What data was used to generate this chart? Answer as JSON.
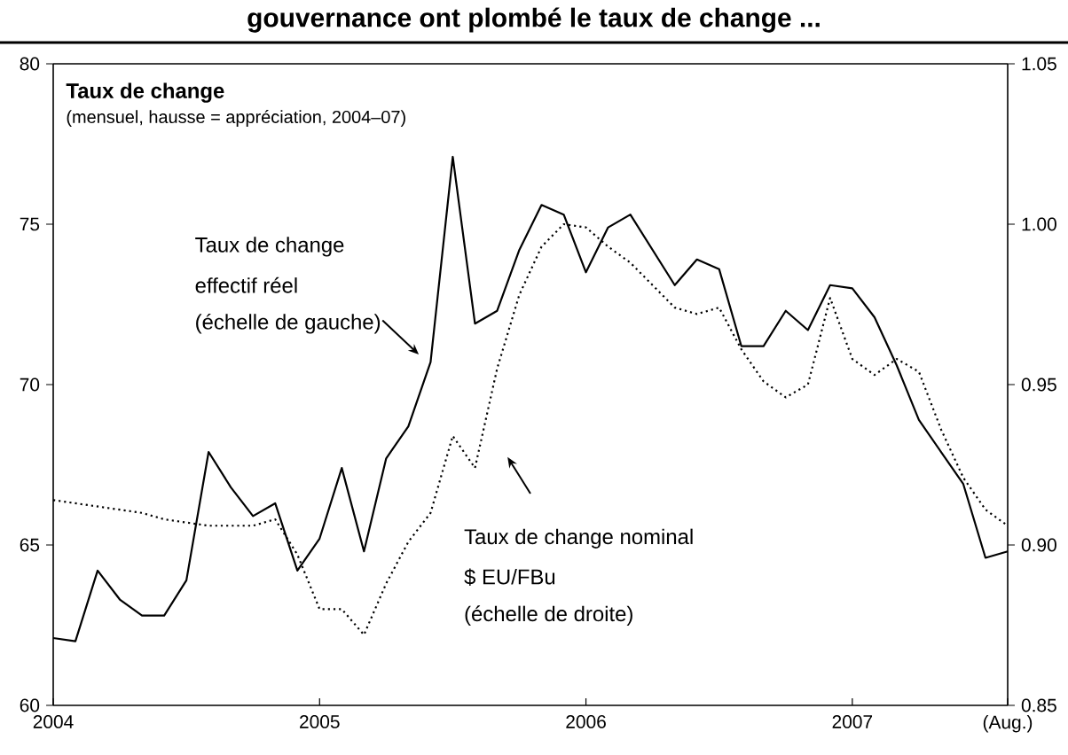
{
  "chart_data": {
    "type": "line",
    "title": "gouvernance ont plombé le taux de change ...",
    "subtitle": "Taux de change",
    "annotations": [
      "(mensuel, hausse = appréciation, 2004–07)",
      "Taux de change",
      "effectif réel",
      "(échelle de gauche)",
      "Taux de change nominal",
      "$ EU/FBu",
      "(échelle de droite)"
    ],
    "x": [
      "2004-01",
      "2004-02",
      "2004-03",
      "2004-04",
      "2004-05",
      "2004-06",
      "2004-07",
      "2004-08",
      "2004-09",
      "2004-10",
      "2004-11",
      "2004-12",
      "2005-01",
      "2005-02",
      "2005-03",
      "2005-04",
      "2005-05",
      "2005-06",
      "2005-07",
      "2005-08",
      "2005-09",
      "2005-10",
      "2005-11",
      "2005-12",
      "2006-01",
      "2006-02",
      "2006-03",
      "2006-04",
      "2006-05",
      "2006-06",
      "2006-07",
      "2006-08",
      "2006-09",
      "2006-10",
      "2006-11",
      "2006-12",
      "2007-01",
      "2007-02",
      "2007-03",
      "2007-04",
      "2007-05",
      "2007-06",
      "2007-07",
      "2007-08"
    ],
    "series": [
      {
        "color": "#000000",
        "line_style": "solid",
        "values": [
          62.1,
          62.0,
          64.2,
          63.3,
          62.8,
          62.8,
          63.9,
          67.9,
          66.8,
          65.9,
          66.3,
          64.2,
          65.2,
          67.4,
          64.8,
          67.7,
          68.7,
          70.7,
          77.1,
          71.9,
          72.3,
          74.2,
          75.6,
          75.3,
          73.5,
          74.9,
          75.3,
          74.2,
          73.1,
          73.9,
          73.6,
          71.2,
          71.2,
          72.3,
          71.7,
          73.1,
          73.0,
          72.1,
          70.6,
          68.9,
          67.9,
          66.9,
          64.6,
          64.8
        ]
      },
      {
        "color": "#000000",
        "line_style": "dotted",
        "axis": "y2",
        "values": [
          0.914,
          0.913,
          0.912,
          0.911,
          0.91,
          0.908,
          0.907,
          0.906,
          0.906,
          0.906,
          0.908,
          0.897,
          0.88,
          0.88,
          0.872,
          0.888,
          0.901,
          0.91,
          0.934,
          0.924,
          0.955,
          0.978,
          0.993,
          1.0,
          0.999,
          0.993,
          0.988,
          0.981,
          0.974,
          0.972,
          0.974,
          0.961,
          0.951,
          0.946,
          0.95,
          0.977,
          0.958,
          0.953,
          0.958,
          0.954,
          0.936,
          0.921,
          0.911,
          0.906
        ]
      }
    ],
    "xlim": [
      "2004-01",
      "2007-08"
    ],
    "xticks": [
      {
        "value": "2004-01",
        "label": "2004"
      },
      {
        "value": "2005-01",
        "label": "2005"
      },
      {
        "value": "2006-01",
        "label": "2006"
      },
      {
        "value": "2007-01",
        "label": "2007"
      },
      {
        "value": "2007-08",
        "label": "(Aug.)"
      }
    ],
    "ylim": [
      60,
      80
    ],
    "yticks": [
      60,
      65,
      70,
      75,
      80
    ],
    "y2lim": [
      0.85,
      1.05
    ],
    "y2ticks": [
      {
        "value": 0.85,
        "label": "0.85"
      },
      {
        "value": 0.9,
        "label": "0.90"
      },
      {
        "value": 0.95,
        "label": "0.95"
      },
      {
        "value": 1.0,
        "label": "1.00"
      },
      {
        "value": 1.05,
        "label": "1.05"
      }
    ],
    "grid": false
  }
}
